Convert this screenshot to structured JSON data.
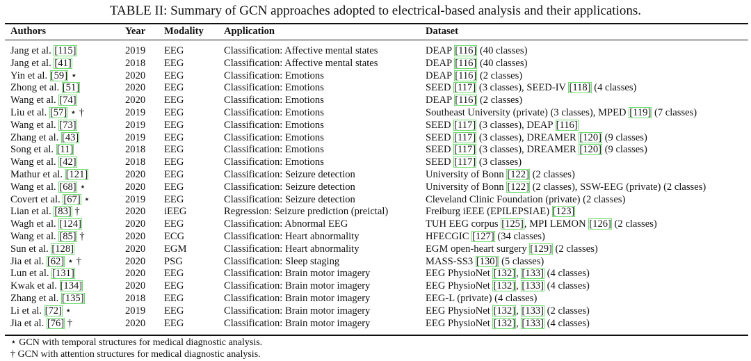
{
  "caption": "TABLE II: Summary of GCN approaches adopted to electrical-based analysis and their applications.",
  "headers": {
    "authors": "Authors",
    "year": "Year",
    "modality": "Modality",
    "application": "Application",
    "dataset": "Dataset"
  },
  "rows": [
    {
      "author": "Jang et al.",
      "ref": "[115]",
      "mark": "",
      "year": "2019",
      "modality": "EEG",
      "application": "Classification: Affective mental states",
      "dataset": [
        {
          "t": "DEAP "
        },
        {
          "c": "[116]"
        },
        {
          "t": " (40 classes)"
        }
      ]
    },
    {
      "author": "Jang et al.",
      "ref": "[41]",
      "mark": "",
      "year": "2018",
      "modality": "EEG",
      "application": "Classification: Affective mental states",
      "dataset": [
        {
          "t": "DEAP "
        },
        {
          "c": "[116]"
        },
        {
          "t": " (40 classes)"
        }
      ]
    },
    {
      "author": "Yin et al.",
      "ref": "[59]",
      "mark": "⋆",
      "year": "2020",
      "modality": "EEG",
      "application": "Classification: Emotions",
      "dataset": [
        {
          "t": "DEAP "
        },
        {
          "c": "[116]"
        },
        {
          "t": " (2 classes)"
        }
      ]
    },
    {
      "author": "Zhong et al.",
      "ref": "[51]",
      "mark": "",
      "year": "2020",
      "modality": "EEG",
      "application": "Classification: Emotions",
      "dataset": [
        {
          "t": "SEED "
        },
        {
          "c": "[117]"
        },
        {
          "t": " (3 classes), SEED-IV "
        },
        {
          "c": "[118]"
        },
        {
          "t": " (4 classes)"
        }
      ]
    },
    {
      "author": "Wang et al.",
      "ref": "[74]",
      "mark": "",
      "year": "2020",
      "modality": "EEG",
      "application": "Classification: Emotions",
      "dataset": [
        {
          "t": "DEAP "
        },
        {
          "c": "[116]"
        },
        {
          "t": " (2 classes)"
        }
      ]
    },
    {
      "author": "Liu et al.",
      "ref": "[57]",
      "mark": "⋆ †",
      "year": "2019",
      "modality": "EEG",
      "application": "Classification: Emotions",
      "dataset": [
        {
          "t": "Southeast University (private) (3 classes), MPED "
        },
        {
          "c": "[119]"
        },
        {
          "t": " (7 classes)"
        }
      ]
    },
    {
      "author": "Wang et al.",
      "ref": "[73]",
      "mark": "",
      "year": "2019",
      "modality": "EEG",
      "application": "Classification: Emotions",
      "dataset": [
        {
          "t": "SEED "
        },
        {
          "c": "[117]"
        },
        {
          "t": " (3 classes), DEAP "
        },
        {
          "c": "[116]"
        }
      ]
    },
    {
      "author": "Zhang et al.",
      "ref": "[43]",
      "mark": "",
      "year": "2019",
      "modality": "EEG",
      "application": "Classification: Emotions",
      "dataset": [
        {
          "t": "SEED "
        },
        {
          "c": "[117]"
        },
        {
          "t": " (3 classes), DREAMER "
        },
        {
          "c": "[120]"
        },
        {
          "t": " (9 classes)"
        }
      ]
    },
    {
      "author": "Song et al.",
      "ref": "[11]",
      "mark": "",
      "year": "2018",
      "modality": "EEG",
      "application": "Classification: Emotions",
      "dataset": [
        {
          "t": "SEED "
        },
        {
          "c": "[117]"
        },
        {
          "t": " (3 classes), DREAMER "
        },
        {
          "c": "[120]"
        },
        {
          "t": " (9 classes)"
        }
      ]
    },
    {
      "author": "Wang et al.",
      "ref": "[42]",
      "mark": "",
      "year": "2018",
      "modality": "EEG",
      "application": "Classification: Emotions",
      "dataset": [
        {
          "t": "SEED "
        },
        {
          "c": "[117]"
        },
        {
          "t": " (3 classes)"
        }
      ]
    },
    {
      "author": "Mathur et al.",
      "ref": "[121]",
      "mark": "",
      "year": "2020",
      "modality": "EEG",
      "application": "Classification: Seizure detection",
      "dataset": [
        {
          "t": "University of Bonn "
        },
        {
          "c": "[122]"
        },
        {
          "t": " (2 classes)"
        }
      ]
    },
    {
      "author": "Wang et al.",
      "ref": "[68]",
      "mark": "⋆",
      "year": "2020",
      "modality": "EEG",
      "application": "Classification: Seizure detection",
      "dataset": [
        {
          "t": "University of Bonn "
        },
        {
          "c": "[122]"
        },
        {
          "t": " (2 classes), SSW-EEG (private) (2 classes)"
        }
      ]
    },
    {
      "author": "Covert et al.",
      "ref": "[67]",
      "mark": "⋆",
      "year": "2019",
      "modality": "EEG",
      "application": "Classification: Seizure detection",
      "dataset": [
        {
          "t": "Cleveland Clinic Foundation (private) (2 classes)"
        }
      ]
    },
    {
      "author": "Lian et al.",
      "ref": "[83]",
      "mark": "†",
      "year": "2020",
      "modality": "iEEG",
      "application": "Regression: Seizure prediction (preictal)",
      "dataset": [
        {
          "t": "Freiburg iEEE (EPILEPSIAE) "
        },
        {
          "c": "[123]"
        }
      ]
    },
    {
      "author": "Wagh et al.",
      "ref": "[124]",
      "mark": "",
      "year": "2020",
      "modality": "EEG",
      "application": "Classification: Abnormal EEG",
      "dataset": [
        {
          "t": "TUH EEG corpus "
        },
        {
          "c": "[125]"
        },
        {
          "t": ", MPI LEMON "
        },
        {
          "c": "[126]"
        },
        {
          "t": " (2 classes)"
        }
      ]
    },
    {
      "author": "Wang et al.",
      "ref": "[85]",
      "mark": "†",
      "year": "2020",
      "modality": "ECG",
      "application": "Classification: Heart abnormality",
      "dataset": [
        {
          "t": "HFECGIC "
        },
        {
          "c": "[127]"
        },
        {
          "t": " (34 classes)"
        }
      ]
    },
    {
      "author": "Sun et al.",
      "ref": "[128]",
      "mark": "",
      "year": "2020",
      "modality": "EGM",
      "application": "Classification: Heart abnormality",
      "dataset": [
        {
          "t": "EGM open-heart surgery "
        },
        {
          "c": "[129]"
        },
        {
          "t": " (2 classes)"
        }
      ]
    },
    {
      "author": "Jia et al.",
      "ref": "[62]",
      "mark": "⋆ †",
      "year": "2020",
      "modality": "PSG",
      "application": "Classification: Sleep staging",
      "dataset": [
        {
          "t": "MASS-SS3 "
        },
        {
          "c": "[130]"
        },
        {
          "t": " (5 classes)"
        }
      ]
    },
    {
      "author": "Lun et al.",
      "ref": "[131]",
      "mark": "",
      "year": "2020",
      "modality": "EEG",
      "application": "Classification: Brain motor imagery",
      "dataset": [
        {
          "t": "EEG PhysioNet "
        },
        {
          "c": "[132]"
        },
        {
          "t": ", "
        },
        {
          "c": "[133]"
        },
        {
          "t": " (4 classes)"
        }
      ]
    },
    {
      "author": "Kwak et al.",
      "ref": "[134]",
      "mark": "",
      "year": "2020",
      "modality": "EEG",
      "application": "Classification: Brain motor imagery",
      "dataset": [
        {
          "t": "EEG PhysioNet "
        },
        {
          "c": "[132]"
        },
        {
          "t": ", "
        },
        {
          "c": "[133]"
        },
        {
          "t": " (4 classes)"
        }
      ]
    },
    {
      "author": "Zhang et al.",
      "ref": "[135]",
      "mark": "",
      "year": "2018",
      "modality": "EEG",
      "application": "Classification: Brain motor imagery",
      "dataset": [
        {
          "t": "EEG-L (private) (4 classes)"
        }
      ]
    },
    {
      "author": "Li et al.",
      "ref": "[72]",
      "mark": "⋆",
      "year": "2019",
      "modality": "EEG",
      "application": "Classification: Brain motor imagery",
      "dataset": [
        {
          "t": "EEG PhysioNet "
        },
        {
          "c": "[132]"
        },
        {
          "t": ", "
        },
        {
          "c": "[133]"
        },
        {
          "t": " (2 classes)"
        }
      ]
    },
    {
      "author": "Jia et al.",
      "ref": "[76]",
      "mark": "†",
      "year": "2020",
      "modality": "EEG",
      "application": "Classification: Brain motor imagery",
      "dataset": [
        {
          "t": "EEG PhysioNet "
        },
        {
          "c": "[132]"
        },
        {
          "t": ", "
        },
        {
          "c": "[133]"
        },
        {
          "t": " (4 classes)"
        }
      ]
    }
  ],
  "footnotes": [
    "⋆ GCN with temporal structures for medical diagnostic analysis.",
    "† GCN with attention structures for medical diagnostic analysis."
  ]
}
